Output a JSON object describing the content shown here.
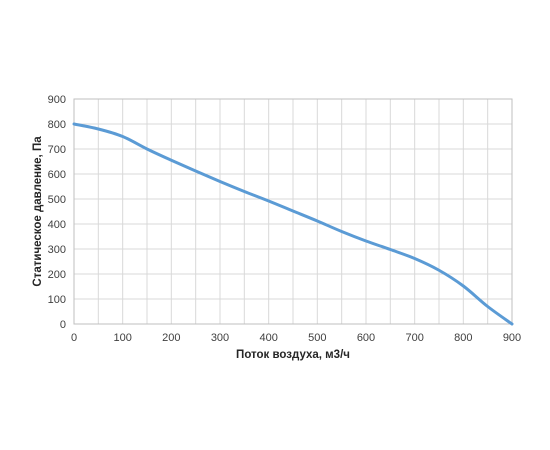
{
  "chart_data": {
    "type": "line",
    "title": "",
    "xlabel": "Поток воздуха, м3/ч",
    "ylabel": "Статическое давление, Па",
    "xlim": [
      0,
      900
    ],
    "ylim": [
      0,
      900
    ],
    "xticks": [
      0,
      100,
      200,
      300,
      400,
      500,
      600,
      700,
      800,
      900
    ],
    "yticks": [
      0,
      100,
      200,
      300,
      400,
      500,
      600,
      700,
      800,
      900
    ],
    "x_minor_step": 50,
    "grid": true,
    "legend": "none",
    "series": [
      {
        "color": "#5b9bd5",
        "x": [
          0,
          50,
          100,
          150,
          200,
          250,
          300,
          350,
          400,
          450,
          500,
          550,
          600,
          650,
          700,
          750,
          800,
          850,
          900
        ],
        "y": [
          800,
          780,
          750,
          700,
          655,
          612,
          570,
          530,
          492,
          452,
          412,
          370,
          332,
          298,
          262,
          215,
          152,
          70,
          0
        ]
      }
    ]
  }
}
